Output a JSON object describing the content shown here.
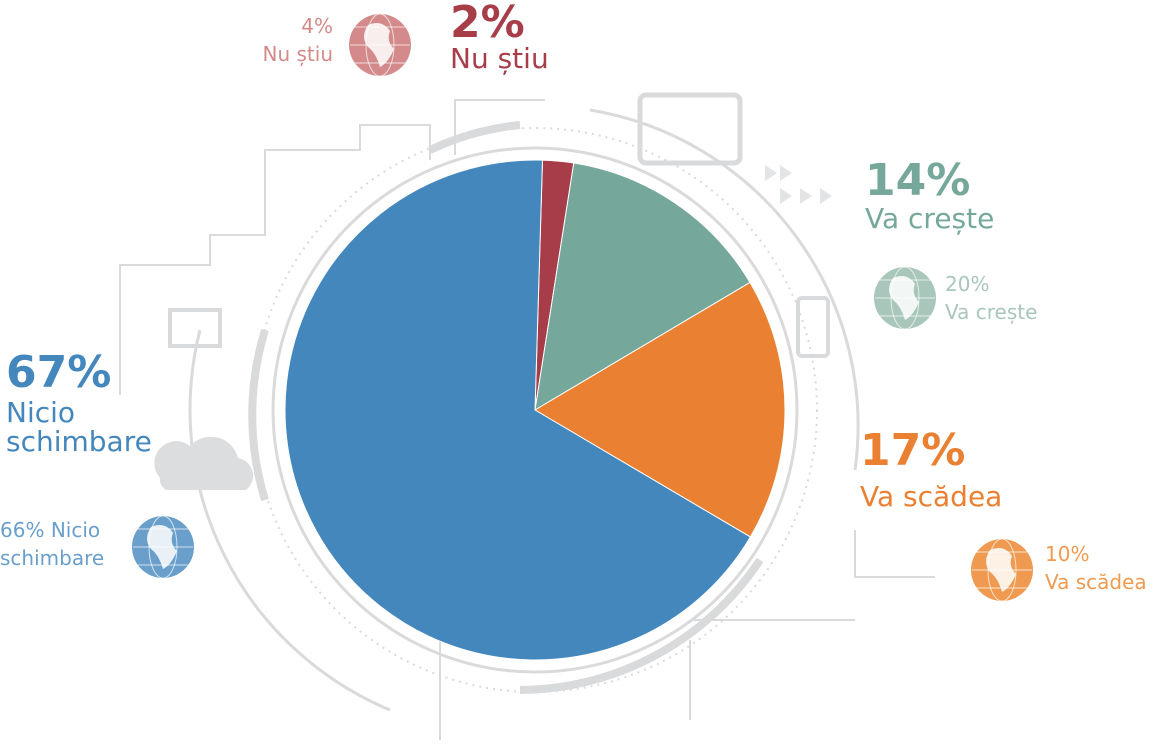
{
  "chart_data": {
    "type": "pie",
    "categories": [
      "Nu știu",
      "Va crește",
      "Va scădea",
      "Nicio schimbare"
    ],
    "values": [
      2,
      14,
      17,
      67
    ],
    "value_labels": [
      "2%",
      "14%",
      "17%",
      "67%"
    ],
    "colors": [
      "#a83d4a",
      "#75a89a",
      "#ea8032",
      "#4387bd"
    ],
    "comparison": {
      "values": [
        4,
        20,
        10,
        66
      ],
      "value_labels": [
        "4%",
        "20%",
        "10%",
        "66%"
      ],
      "colors": [
        "#d48a8a",
        "#a9c6ba",
        "#ef9a50",
        "#6a9fcb"
      ]
    }
  }
}
